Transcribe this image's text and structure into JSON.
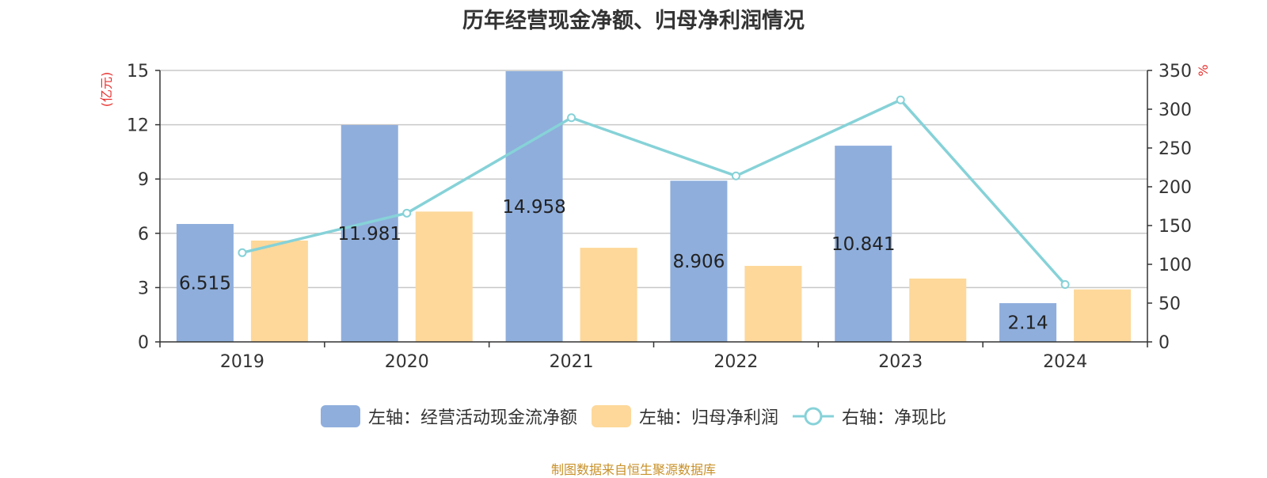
{
  "title": "历年经营现金净额、归母净利润情况",
  "source": "制图数据来自恒生聚源数据库",
  "colors": {
    "bar1": "#8faedc",
    "bar2": "#fdd89a",
    "line": "#86d2d8",
    "left_unit": "#e8302e",
    "right_unit": "#e8302e"
  },
  "chart_data": {
    "type": "bar",
    "title": "历年经营现金净额、归母净利润情况",
    "categories": [
      "2019",
      "2020",
      "2021",
      "2022",
      "2023",
      "2024"
    ],
    "left_axis": {
      "unit": "(亿元)",
      "ylim": [
        0,
        15
      ],
      "ticks": [
        "0",
        "3",
        "6",
        "9",
        "12",
        "15"
      ]
    },
    "right_axis": {
      "unit": "%",
      "ylim": [
        0,
        350
      ],
      "ticks": [
        "0",
        "50",
        "100",
        "150",
        "200",
        "250",
        "300",
        "350"
      ]
    },
    "series": [
      {
        "name": "左轴：经营活动现金流净额",
        "kind": "bar",
        "axis": "left",
        "values": [
          6.515,
          11.981,
          14.958,
          8.906,
          10.841,
          2.14
        ],
        "labels": [
          "6.515",
          "11.981",
          "14.958",
          "8.906",
          "10.841",
          "2.14"
        ]
      },
      {
        "name": "左轴：归母净利润",
        "kind": "bar",
        "axis": "left",
        "values": [
          5.6,
          7.2,
          5.2,
          4.2,
          3.5,
          2.9
        ]
      },
      {
        "name": "右轴：净现比",
        "kind": "line",
        "axis": "right",
        "values": [
          115,
          166,
          289,
          214,
          312,
          74
        ]
      }
    ],
    "grid": true,
    "legend_position": "bottom"
  }
}
